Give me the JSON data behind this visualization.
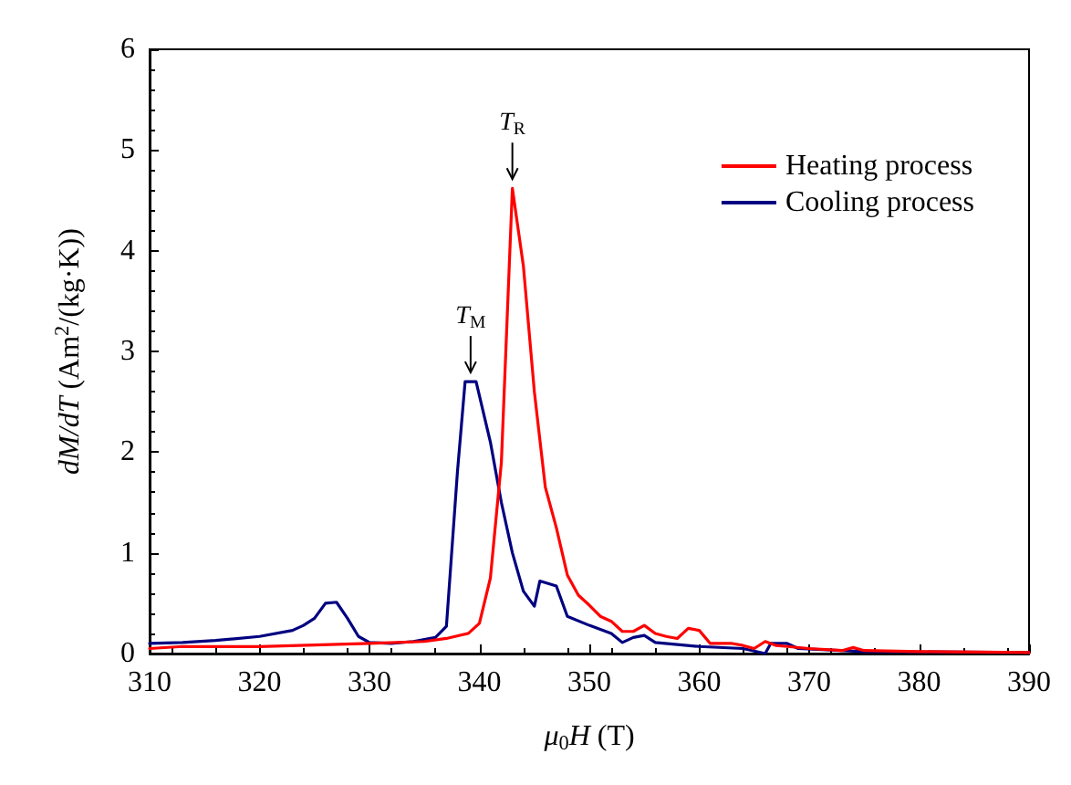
{
  "chart_data": {
    "type": "line",
    "xlabel": "μ$_{0}$H (T)",
    "ylabel": "dM/dT (Am$^{2}$/(kg·K))",
    "xlim": [
      310,
      390
    ],
    "xticks": [
      310,
      320,
      330,
      340,
      350,
      360,
      370,
      380,
      390
    ],
    "ylim": [
      0,
      6
    ],
    "yticks": [
      0,
      1,
      2,
      3,
      4,
      5,
      6
    ],
    "grid": false,
    "legend": "top right",
    "marker": "none",
    "line_style": "solid",
    "annotations": [
      {
        "text": "T$_{R}$",
        "x": 343,
        "y": 4.62
      },
      {
        "text": "T$_{M}$",
        "x": 339.2,
        "y": 2.7
      }
    ],
    "series": [
      {
        "name": "Heating process",
        "color": "#ff0000",
        "x": [
          310,
          313,
          320,
          330,
          335,
          337,
          339,
          340,
          341,
          342,
          343,
          344,
          345,
          346,
          347,
          348,
          349,
          350,
          351,
          352,
          353,
          354,
          355,
          356,
          357,
          358,
          359,
          360,
          361,
          363,
          364,
          365,
          366,
          367,
          368,
          370,
          373,
          374,
          375,
          380,
          390
        ],
        "values": [
          0.05,
          0.07,
          0.07,
          0.1,
          0.12,
          0.15,
          0.2,
          0.3,
          0.75,
          1.9,
          4.62,
          3.85,
          2.6,
          1.65,
          1.25,
          0.78,
          0.58,
          0.48,
          0.37,
          0.32,
          0.22,
          0.22,
          0.28,
          0.2,
          0.17,
          0.15,
          0.25,
          0.23,
          0.1,
          0.1,
          0.08,
          0.05,
          0.12,
          0.08,
          0.07,
          0.05,
          0.03,
          0.06,
          0.03,
          0.02,
          0.01
        ]
      },
      {
        "name": "Cooling process",
        "color": "#000080",
        "x": [
          310,
          313,
          316,
          320,
          323,
          324,
          325,
          326,
          327,
          328,
          329,
          330,
          332,
          334,
          336,
          337,
          338,
          338.7,
          339.7,
          341,
          342,
          343,
          344,
          345,
          345.5,
          347,
          348,
          350,
          352,
          353,
          354,
          355,
          356,
          360,
          364,
          366,
          366.5,
          368,
          369,
          375,
          390
        ],
        "values": [
          0.1,
          0.11,
          0.13,
          0.17,
          0.23,
          0.28,
          0.35,
          0.5,
          0.51,
          0.35,
          0.17,
          0.11,
          0.1,
          0.12,
          0.16,
          0.27,
          1.8,
          2.7,
          2.7,
          2.1,
          1.5,
          1.0,
          0.62,
          0.47,
          0.72,
          0.67,
          0.37,
          0.28,
          0.2,
          0.11,
          0.16,
          0.18,
          0.11,
          0.07,
          0.05,
          0.0,
          0.1,
          0.1,
          0.05,
          0.02,
          0.01
        ]
      }
    ]
  }
}
